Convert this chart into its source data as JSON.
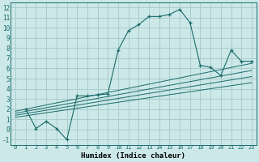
{
  "title": "",
  "xlabel": "Humidex (Indice chaleur)",
  "bg_color": "#cce8e8",
  "grid_color": "#aacccc",
  "line_color": "#1a6b6b",
  "xlim": [
    -0.5,
    23.5
  ],
  "ylim": [
    -1.5,
    12.5
  ],
  "xticks": [
    0,
    1,
    2,
    3,
    4,
    5,
    6,
    7,
    8,
    9,
    10,
    11,
    12,
    13,
    14,
    15,
    16,
    17,
    18,
    19,
    20,
    21,
    22,
    23
  ],
  "yticks": [
    -1,
    0,
    1,
    2,
    3,
    4,
    5,
    6,
    7,
    8,
    9,
    10,
    11,
    12
  ],
  "main_x": [
    1,
    2,
    3,
    4,
    5,
    6,
    7,
    8,
    9,
    10,
    11,
    12,
    13,
    14,
    15,
    16,
    17,
    18,
    19,
    20,
    21,
    22,
    23
  ],
  "main_y": [
    2.0,
    0.1,
    0.8,
    0.1,
    -1.0,
    3.3,
    3.3,
    3.4,
    3.5,
    7.8,
    9.7,
    10.3,
    11.1,
    11.1,
    11.3,
    11.8,
    10.5,
    6.3,
    6.1,
    5.3,
    7.8,
    6.7,
    6.7
  ],
  "linear_lines": [
    {
      "x": [
        0,
        23
      ],
      "y": [
        1.8,
        6.5
      ]
    },
    {
      "x": [
        0,
        23
      ],
      "y": [
        1.6,
        5.8
      ]
    },
    {
      "x": [
        0,
        23
      ],
      "y": [
        1.4,
        5.2
      ]
    },
    {
      "x": [
        0,
        23
      ],
      "y": [
        1.2,
        4.6
      ]
    }
  ]
}
